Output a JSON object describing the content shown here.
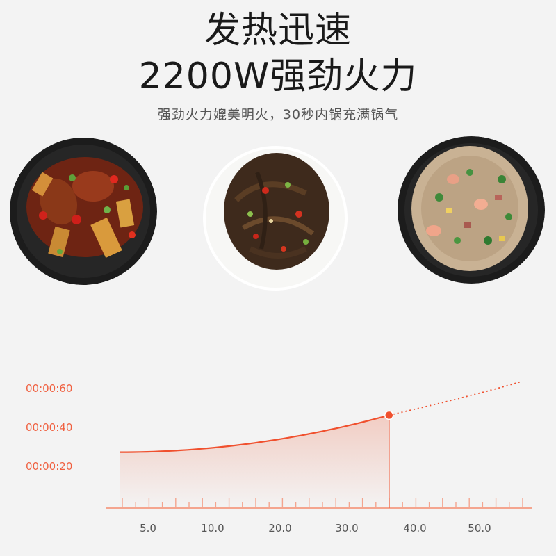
{
  "header": {
    "title_line1": "发热迅速",
    "title_line2": "2200W强劲火力",
    "subtitle": "强劲火力媲美明火，30秒内锅充满锅气"
  },
  "dishes": [
    {
      "icon": "braised-chicken-dish-image"
    },
    {
      "icon": "stir-fried-vegetable-dish-image"
    },
    {
      "icon": "fried-rice-dish-image"
    }
  ],
  "colors": {
    "background": "#f3f3f3",
    "accent": "#f0502e",
    "tick_label": "#f06040",
    "axis": "#f4a58f",
    "x_label": "#555555"
  },
  "chart_data": {
    "type": "line",
    "title": "",
    "xlabel": "",
    "ylabel": "",
    "x_ticks": [
      "5.0",
      "10.0",
      "20.0",
      "30.0",
      "40.0",
      "50.0"
    ],
    "y_ticks": [
      "00:00:20",
      "00:00:40",
      "00:00:60"
    ],
    "series": [
      {
        "style": "solid",
        "points": [
          [
            0,
            28
          ],
          [
            35,
            47
          ]
        ]
      },
      {
        "style": "dotted",
        "points": [
          [
            35,
            47
          ],
          [
            45,
            56
          ],
          [
            52,
            64
          ]
        ]
      }
    ],
    "highlight_point": [
      35,
      47
    ]
  }
}
